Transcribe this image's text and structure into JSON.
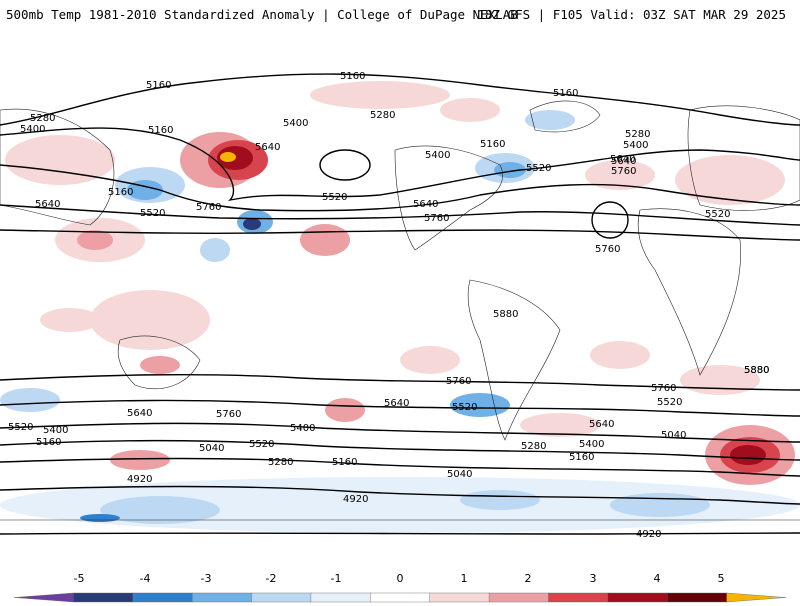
{
  "header": {
    "title": "500mb Temp 1981-2010 Standardized Anomaly | College of DuPage NEXLAB",
    "run_info": "18Z GFS | F105 Valid: 03Z SAT MAR 29 2025"
  },
  "map": {
    "contour_labels": [
      {
        "text": "5160"
      },
      {
        "text": "5160"
      },
      {
        "text": "5160"
      },
      {
        "text": "5160"
      },
      {
        "text": "5280"
      },
      {
        "text": "5400"
      },
      {
        "text": "5640"
      },
      {
        "text": "5760"
      },
      {
        "text": "5520"
      },
      {
        "text": "5640"
      },
      {
        "text": "5400"
      },
      {
        "text": "5640"
      },
      {
        "text": "5280"
      },
      {
        "text": "5400"
      },
      {
        "text": "5520"
      },
      {
        "text": "5640"
      },
      {
        "text": "5760"
      },
      {
        "text": "5160"
      },
      {
        "text": "5520"
      },
      {
        "text": "5160"
      },
      {
        "text": "5280"
      },
      {
        "text": "5400"
      },
      {
        "text": "5640"
      },
      {
        "text": "5760"
      },
      {
        "text": "5520"
      },
      {
        "text": "5760"
      },
      {
        "text": "5880"
      },
      {
        "text": "5880"
      },
      {
        "text": "5520"
      },
      {
        "text": "5400"
      },
      {
        "text": "5160"
      },
      {
        "text": "5640"
      },
      {
        "text": "5760"
      },
      {
        "text": "5040"
      },
      {
        "text": "5520"
      },
      {
        "text": "5400"
      },
      {
        "text": "5280"
      },
      {
        "text": "4920"
      },
      {
        "text": "5160"
      },
      {
        "text": "5640"
      },
      {
        "text": "5760"
      },
      {
        "text": "5520"
      },
      {
        "text": "5280"
      },
      {
        "text": "5040"
      },
      {
        "text": "4920"
      },
      {
        "text": "5400"
      },
      {
        "text": "5160"
      },
      {
        "text": "5640"
      },
      {
        "text": "5760"
      },
      {
        "text": "5520"
      },
      {
        "text": "5040"
      },
      {
        "text": "5880"
      },
      {
        "text": "4920"
      }
    ]
  },
  "colorbar": {
    "ticks": [
      "-5",
      "-4",
      "-3",
      "-2",
      "-1",
      "0",
      "1",
      "2",
      "3",
      "4",
      "5"
    ],
    "colors": [
      "#6a3fa0",
      "#283b78",
      "#2f7fcf",
      "#6fb0e6",
      "#bcd8f2",
      "#e6f0fa",
      "#ffffff",
      "#f7d8d8",
      "#eca0a4",
      "#d8444e",
      "#a00d1e",
      "#650008",
      "#f4b400"
    ]
  }
}
